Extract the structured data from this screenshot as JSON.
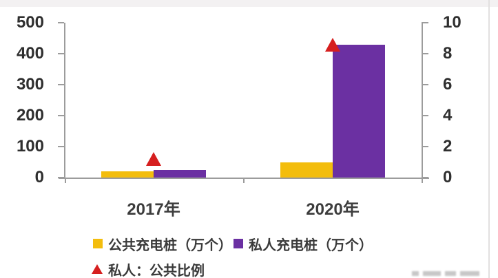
{
  "chart_data": {
    "type": "bar",
    "subtype": "combo-bar-with-scatter-markers",
    "categories": [
      "2017年",
      "2020年"
    ],
    "series": [
      {
        "name": "公共充电桩（万个）",
        "chart": "bar",
        "axis": "left",
        "marker": "square",
        "color": "#F3BD0D",
        "values": [
          21,
          50
        ]
      },
      {
        "name": "私人充电桩（万个）",
        "chart": "bar",
        "axis": "left",
        "marker": "square",
        "color": "#6B30A2",
        "values": [
          25,
          430
        ]
      },
      {
        "name": "私人：公共比例",
        "chart": "scatter",
        "axis": "right",
        "marker": "triangle-up",
        "color": "#D61F1F",
        "values": [
          1.2,
          8.6
        ]
      }
    ],
    "left_axis": {
      "min": 0,
      "max": 500,
      "step": 100,
      "ticks": [
        "0",
        "100",
        "200",
        "300",
        "400",
        "500"
      ]
    },
    "right_axis": {
      "min": 0,
      "max": 10,
      "step": 2,
      "ticks": [
        "0",
        "2",
        "4",
        "6",
        "8",
        "10"
      ]
    },
    "grid": false,
    "legend_position": "bottom-left",
    "axis_color": "#9c9c9c",
    "text_color": "#2f2f2f",
    "background": "#ffffff"
  }
}
